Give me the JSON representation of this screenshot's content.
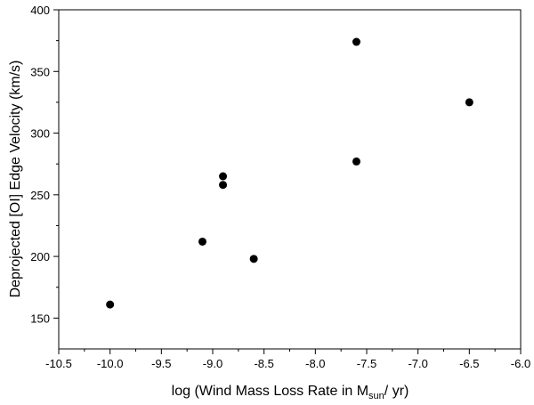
{
  "chart_data": {
    "type": "scatter",
    "xlabel": {
      "prefix": "log (Wind Mass Loss Rate in M",
      "sub": "sun",
      "suffix": "/ yr)"
    },
    "ylabel": "Deprojected [OI] Edge Velocity  (km/s)",
    "xlim": [
      -10.5,
      -6.0
    ],
    "ylim": [
      125,
      400
    ],
    "xticks": [
      -10.5,
      -10.0,
      -9.5,
      -9.0,
      -8.5,
      -8.0,
      -7.5,
      -7.0,
      -6.5,
      -6.0
    ],
    "xtick_labels": [
      "-10.5",
      "-10.0",
      "-9.5",
      "-9.0",
      "-8.5",
      "-8.0",
      "-7.5",
      "-7.0",
      "-6.5",
      "-6.0"
    ],
    "yticks": [
      150,
      200,
      250,
      300,
      350,
      400
    ],
    "ytick_labels": [
      "150",
      "200",
      "250",
      "300",
      "350",
      "400"
    ],
    "grid": false,
    "marker_color": "#000000",
    "points": [
      {
        "x": -10.0,
        "y": 161
      },
      {
        "x": -9.1,
        "y": 212
      },
      {
        "x": -8.9,
        "y": 265
      },
      {
        "x": -8.9,
        "y": 258
      },
      {
        "x": -8.6,
        "y": 198
      },
      {
        "x": -7.6,
        "y": 374
      },
      {
        "x": -7.6,
        "y": 277
      },
      {
        "x": -6.5,
        "y": 325
      }
    ]
  }
}
